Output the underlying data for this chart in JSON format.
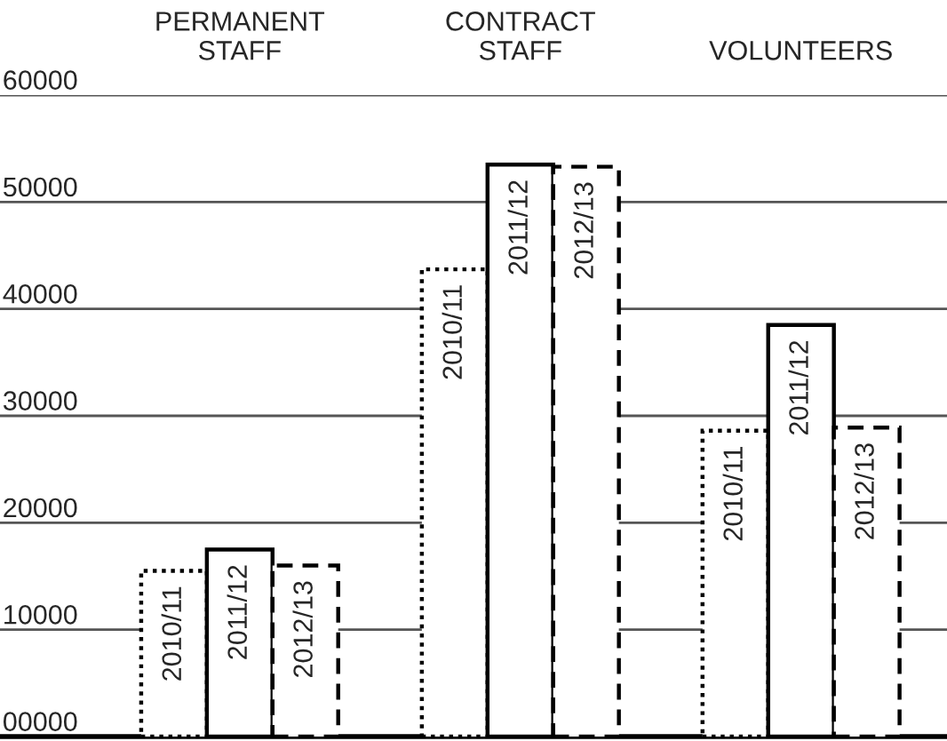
{
  "chart_data": {
    "type": "bar",
    "categories": [
      "PERMANENT\nSTAFF",
      "CONTRACT\nSTAFF",
      "VOLUNTEERS"
    ],
    "series": [
      {
        "name": "2010/11",
        "color": "#ffffff",
        "line_style": "dotted",
        "values": [
          15500,
          43700,
          28600
        ]
      },
      {
        "name": "2011/12",
        "color": "#ffffff",
        "line_style": "solid",
        "values": [
          17500,
          53500,
          38500
        ]
      },
      {
        "name": "2012/13",
        "color": "#ffffff",
        "line_style": "dashed",
        "values": [
          16000,
          53300,
          28900
        ]
      }
    ],
    "ylim": [
      0,
      60000
    ],
    "yticks": [
      {
        "value": 0,
        "label": "00000"
      },
      10000,
      20000,
      30000,
      40000,
      50000,
      60000
    ],
    "grid": "y"
  }
}
